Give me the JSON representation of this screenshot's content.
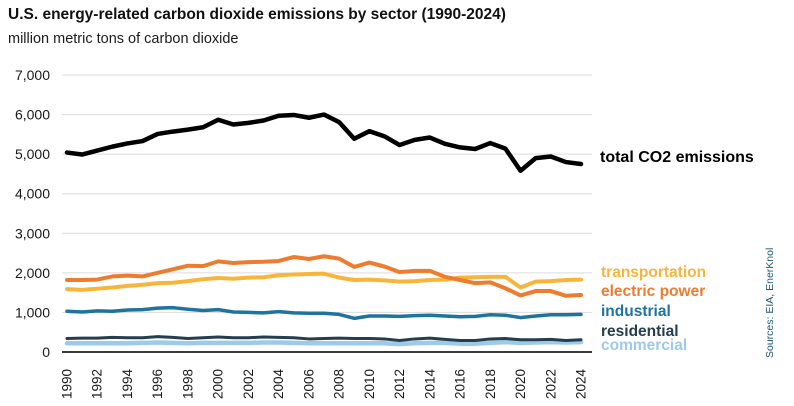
{
  "header": {
    "title": "U.S. energy-related carbon dioxide emissions by sector (1990-2024)",
    "subtitle": "million metric tons of carbon dioxide"
  },
  "source_note": "Sources: EIA, EnerKnol",
  "colors": {
    "background": "#ffffff",
    "grid": "#dcdcdc",
    "axis": "#3a3a3a",
    "tick_text": "#1a1a1a",
    "title_text": "#111111",
    "source_text": "#1e5a75"
  },
  "chart_data": {
    "type": "line",
    "title": "U.S. energy-related carbon dioxide emissions by sector (1990-2024)",
    "units_label": "million metric tons of carbon dioxide",
    "x": [
      1990,
      1991,
      1992,
      1993,
      1994,
      1995,
      1996,
      1997,
      1998,
      1999,
      2000,
      2001,
      2002,
      2003,
      2004,
      2005,
      2006,
      2007,
      2008,
      2009,
      2010,
      2011,
      2012,
      2013,
      2014,
      2015,
      2016,
      2017,
      2018,
      2019,
      2020,
      2021,
      2022,
      2023,
      2024
    ],
    "x_ticks": [
      1990,
      1992,
      1994,
      1996,
      1998,
      2000,
      2002,
      2004,
      2006,
      2008,
      2010,
      2012,
      2014,
      2016,
      2018,
      2020,
      2022,
      2024
    ],
    "x_tick_labels": [
      "1990",
      "1992",
      "1994",
      "1996",
      "1998",
      "2000",
      "2002",
      "2004",
      "2006",
      "2008",
      "2010",
      "2012",
      "2014",
      "2016",
      "2018",
      "2020",
      "2022",
      "2024"
    ],
    "ylim": [
      0,
      7000
    ],
    "y_ticks": [
      0,
      1000,
      2000,
      3000,
      4000,
      5000,
      6000,
      7000
    ],
    "y_tick_labels": [
      "0",
      "1,000",
      "2,000",
      "3,000",
      "4,000",
      "5,000",
      "6,000",
      "7,000"
    ],
    "grid": "horizontal",
    "legend_position": "labels-right-of-lines",
    "series": [
      {
        "name": "total CO2 emissions",
        "color": "#000000",
        "stroke_width": 4.5,
        "values": [
          5040,
          4990,
          5090,
          5190,
          5270,
          5330,
          5510,
          5570,
          5620,
          5680,
          5870,
          5750,
          5790,
          5850,
          5970,
          5990,
          5920,
          6000,
          5810,
          5390,
          5580,
          5450,
          5230,
          5360,
          5420,
          5260,
          5170,
          5130,
          5280,
          5140,
          4580,
          4900,
          4940,
          4800,
          4750
        ]
      },
      {
        "name": "transportation",
        "color": "#F9B53A",
        "stroke_width": 4,
        "values": [
          1590,
          1570,
          1600,
          1630,
          1670,
          1700,
          1740,
          1750,
          1790,
          1840,
          1870,
          1850,
          1880,
          1890,
          1940,
          1960,
          1970,
          1980,
          1880,
          1820,
          1830,
          1810,
          1780,
          1790,
          1820,
          1830,
          1880,
          1890,
          1900,
          1900,
          1630,
          1780,
          1790,
          1820,
          1830
        ]
      },
      {
        "name": "electric power",
        "color": "#ED7C2F",
        "stroke_width": 4,
        "values": [
          1820,
          1820,
          1830,
          1910,
          1930,
          1910,
          2000,
          2090,
          2180,
          2170,
          2290,
          2250,
          2270,
          2280,
          2300,
          2400,
          2350,
          2420,
          2360,
          2150,
          2260,
          2160,
          2020,
          2050,
          2050,
          1900,
          1820,
          1740,
          1760,
          1610,
          1430,
          1540,
          1540,
          1420,
          1440
        ]
      },
      {
        "name": "industrial",
        "color": "#1E749D",
        "stroke_width": 3.5,
        "values": [
          1030,
          1010,
          1040,
          1030,
          1060,
          1070,
          1110,
          1120,
          1080,
          1050,
          1070,
          1010,
          1000,
          990,
          1020,
          990,
          980,
          980,
          950,
          850,
          910,
          910,
          900,
          920,
          930,
          910,
          890,
          900,
          940,
          930,
          870,
          910,
          940,
          940,
          950
        ]
      },
      {
        "name": "residential",
        "color": "#243D4F",
        "stroke_width": 3,
        "values": [
          340,
          350,
          350,
          370,
          360,
          360,
          390,
          370,
          340,
          360,
          380,
          360,
          360,
          380,
          370,
          360,
          330,
          340,
          350,
          340,
          340,
          330,
          290,
          330,
          350,
          320,
          290,
          290,
          330,
          340,
          310,
          310,
          320,
          290,
          310
        ]
      },
      {
        "name": "commercial",
        "color": "#9ECAE9",
        "stroke_width": 4.5,
        "values": [
          220,
          220,
          220,
          220,
          220,
          230,
          240,
          230,
          220,
          230,
          230,
          230,
          230,
          240,
          240,
          230,
          220,
          220,
          220,
          220,
          220,
          220,
          200,
          220,
          230,
          230,
          210,
          210,
          230,
          250,
          230,
          240,
          250,
          240,
          250
        ]
      }
    ]
  }
}
